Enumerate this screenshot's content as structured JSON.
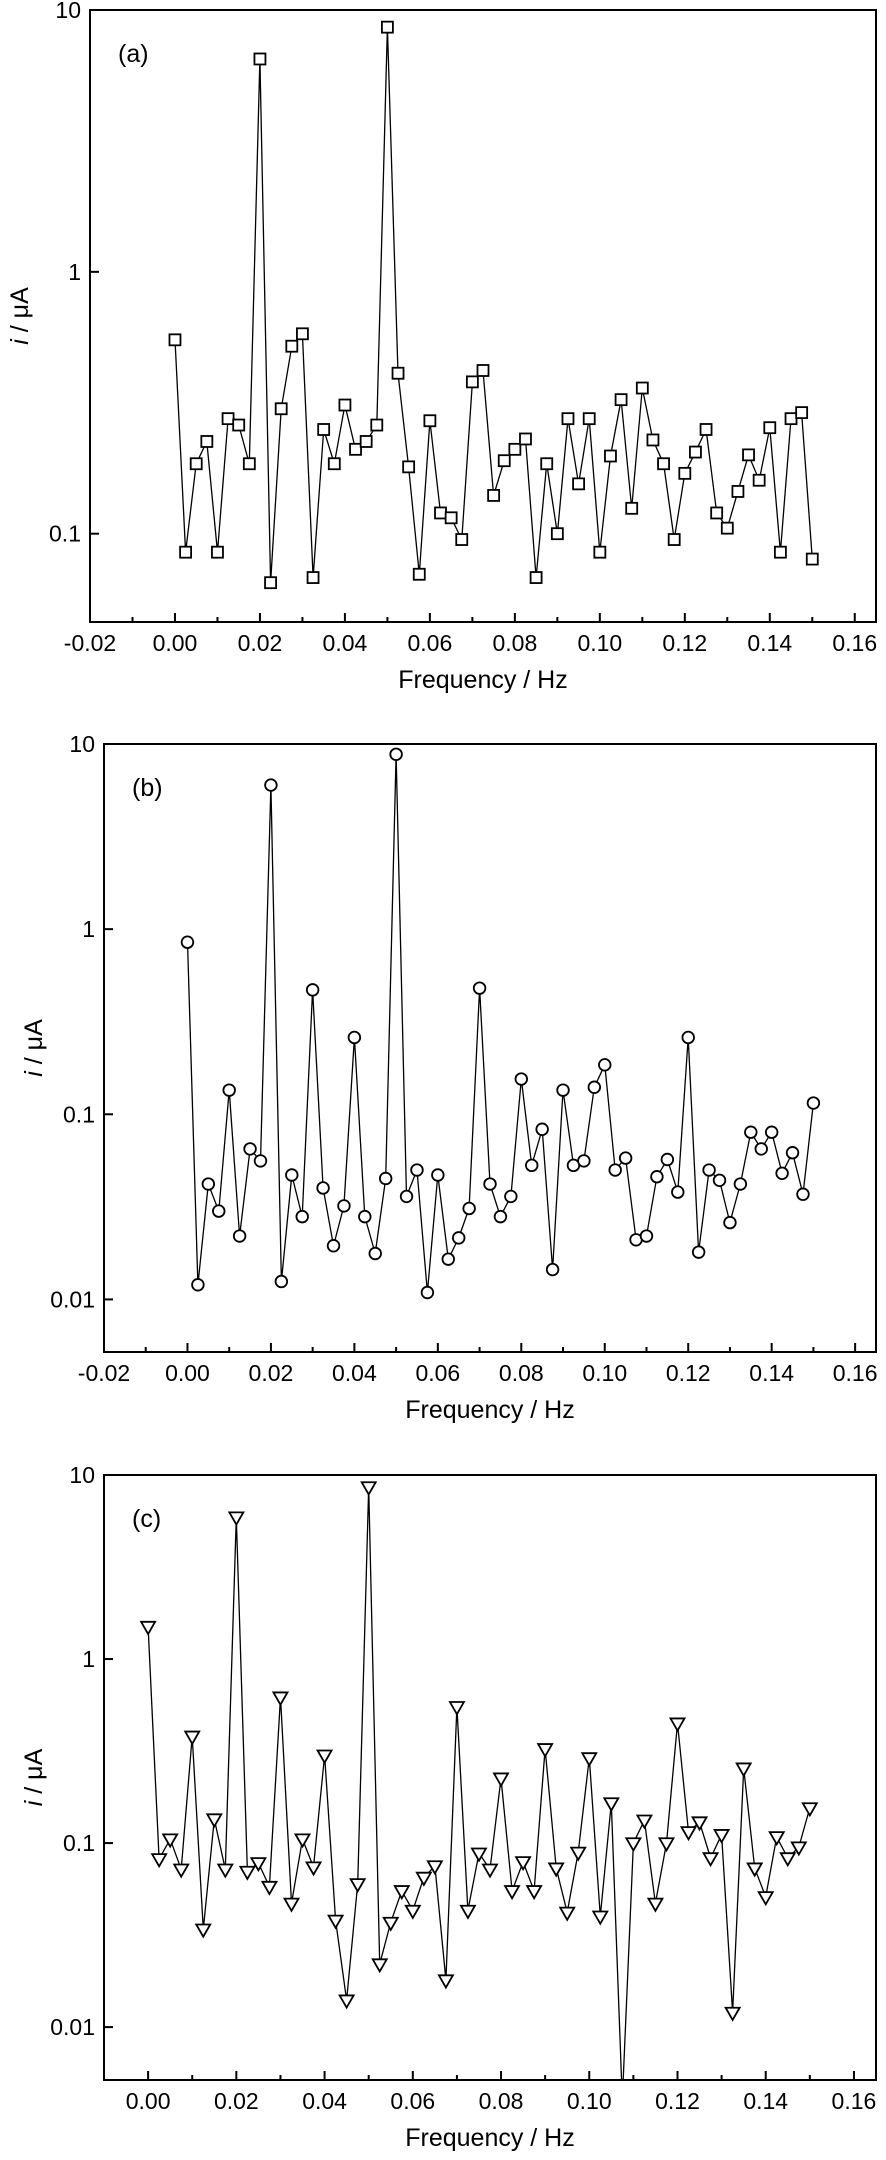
{
  "figure": {
    "background": "#ffffff",
    "axis_color": "#000000",
    "line_color": "#000000",
    "marker_fill": "#ffffff",
    "x_axis_title": "Frequency / Hz",
    "y_axis_title_italic": "i",
    "y_axis_title_rest": " / μA"
  },
  "chart_data": [
    {
      "type": "line",
      "panel_tag": "(a)",
      "marker": "square",
      "xlabel": "Frequency / Hz",
      "ylabel": "i / μA",
      "xlim": [
        -0.02,
        0.165
      ],
      "ylim": [
        0.046,
        10
      ],
      "x_major_ticks": [
        -0.02,
        0.0,
        0.02,
        0.04,
        0.06,
        0.08,
        0.1,
        0.12,
        0.14,
        0.16
      ],
      "x_minor_step": 0.01,
      "y_ticks": [
        10,
        1,
        0.1
      ],
      "grid": false,
      "legend": "none",
      "x": [
        0,
        0.0025,
        0.005,
        0.0075,
        0.01,
        0.0125,
        0.015,
        0.0175,
        0.02,
        0.0225,
        0.025,
        0.0275,
        0.03,
        0.0325,
        0.035,
        0.0375,
        0.04,
        0.0425,
        0.045,
        0.0475,
        0.05,
        0.0525,
        0.055,
        0.0575,
        0.06,
        0.0625,
        0.065,
        0.0675,
        0.07,
        0.0725,
        0.075,
        0.0775,
        0.08,
        0.0825,
        0.085,
        0.0875,
        0.09,
        0.0925,
        0.095,
        0.0975,
        0.1,
        0.1025,
        0.105,
        0.1075,
        0.11,
        0.1125,
        0.115,
        0.1175,
        0.12,
        0.1225,
        0.125,
        0.1275,
        0.13,
        0.1325,
        0.135,
        0.1375,
        0.14,
        0.1425,
        0.145,
        0.1475,
        0.15
      ],
      "y": [
        0.55,
        0.085,
        0.185,
        0.225,
        0.085,
        0.275,
        0.26,
        0.185,
        6.5,
        0.065,
        0.3,
        0.52,
        0.58,
        0.068,
        0.25,
        0.185,
        0.31,
        0.21,
        0.225,
        0.26,
        8.6,
        0.41,
        0.18,
        0.07,
        0.27,
        0.12,
        0.115,
        0.095,
        0.38,
        0.42,
        0.14,
        0.19,
        0.21,
        0.23,
        0.068,
        0.185,
        0.1,
        0.275,
        0.155,
        0.275,
        0.085,
        0.198,
        0.325,
        0.125,
        0.36,
        0.228,
        0.185,
        0.095,
        0.17,
        0.205,
        0.25,
        0.12,
        0.105,
        0.145,
        0.2,
        0.16,
        0.254,
        0.085,
        0.275,
        0.29,
        0.08
      ]
    },
    {
      "type": "line",
      "panel_tag": "(b)",
      "marker": "circle",
      "xlabel": "Frequency / Hz",
      "ylabel": "i / μA",
      "xlim": [
        -0.02,
        0.165
      ],
      "ylim": [
        0.0052,
        10
      ],
      "x_major_ticks": [
        -0.02,
        0.0,
        0.02,
        0.04,
        0.06,
        0.08,
        0.1,
        0.12,
        0.14,
        0.16
      ],
      "x_minor_step": 0.01,
      "y_ticks": [
        10,
        1,
        0.1,
        0.01
      ],
      "grid": false,
      "legend": "none",
      "x": [
        0,
        0.0025,
        0.005,
        0.0075,
        0.01,
        0.0125,
        0.015,
        0.0175,
        0.02,
        0.0225,
        0.025,
        0.0275,
        0.03,
        0.0325,
        0.035,
        0.0375,
        0.04,
        0.0425,
        0.045,
        0.0475,
        0.05,
        0.0525,
        0.055,
        0.0575,
        0.06,
        0.0625,
        0.065,
        0.0675,
        0.07,
        0.0725,
        0.075,
        0.0775,
        0.08,
        0.0825,
        0.085,
        0.0875,
        0.09,
        0.0925,
        0.095,
        0.0975,
        0.1,
        0.1025,
        0.105,
        0.1075,
        0.11,
        0.1125,
        0.115,
        0.1175,
        0.12,
        0.1225,
        0.125,
        0.1275,
        0.13,
        0.1325,
        0.135,
        0.1375,
        0.14,
        0.1425,
        0.145,
        0.1475,
        0.15
      ],
      "y": [
        0.85,
        0.012,
        0.042,
        0.03,
        0.135,
        0.022,
        0.065,
        0.056,
        6.0,
        0.0125,
        0.047,
        0.028,
        0.47,
        0.04,
        0.0195,
        0.032,
        0.26,
        0.028,
        0.0177,
        0.045,
        8.8,
        0.036,
        0.05,
        0.0109,
        0.047,
        0.0165,
        0.0215,
        0.031,
        0.48,
        0.042,
        0.028,
        0.036,
        0.155,
        0.053,
        0.083,
        0.0145,
        0.135,
        0.053,
        0.056,
        0.14,
        0.185,
        0.05,
        0.058,
        0.021,
        0.022,
        0.046,
        0.057,
        0.038,
        0.26,
        0.018,
        0.05,
        0.044,
        0.026,
        0.042,
        0.08,
        0.065,
        0.08,
        0.048,
        0.062,
        0.037,
        0.115
      ]
    },
    {
      "type": "line",
      "panel_tag": "(c)",
      "marker": "triangle-down",
      "xlabel": "Frequency / Hz",
      "ylabel": "i / μA",
      "xlim": [
        -0.01,
        0.165
      ],
      "ylim": [
        0.00516,
        10
      ],
      "x_major_ticks": [
        0.0,
        0.02,
        0.04,
        0.06,
        0.08,
        0.1,
        0.12,
        0.14,
        0.16
      ],
      "x_minor_step": 0.01,
      "y_ticks": [
        10,
        1,
        0.1,
        0.01
      ],
      "grid": false,
      "legend": "none",
      "x": [
        0,
        0.0025,
        0.005,
        0.0075,
        0.01,
        0.0125,
        0.015,
        0.0175,
        0.02,
        0.0225,
        0.025,
        0.0275,
        0.03,
        0.0325,
        0.035,
        0.0375,
        0.04,
        0.0425,
        0.045,
        0.0475,
        0.05,
        0.0525,
        0.055,
        0.0575,
        0.06,
        0.0625,
        0.065,
        0.0675,
        0.07,
        0.0725,
        0.075,
        0.0775,
        0.08,
        0.0825,
        0.085,
        0.0875,
        0.09,
        0.0925,
        0.095,
        0.0975,
        0.1,
        0.1025,
        0.105,
        0.1075,
        0.11,
        0.1125,
        0.115,
        0.1175,
        0.12,
        0.1225,
        0.125,
        0.1275,
        0.13,
        0.1325,
        0.135,
        0.1375,
        0.14,
        0.1425,
        0.145,
        0.1475,
        0.15
      ],
      "y": [
        1.5,
        0.082,
        0.105,
        0.072,
        0.38,
        0.034,
        0.135,
        0.072,
        5.9,
        0.07,
        0.078,
        0.058,
        0.62,
        0.047,
        0.105,
        0.074,
        0.3,
        0.038,
        0.014,
        0.06,
        8.6,
        0.022,
        0.037,
        0.055,
        0.043,
        0.065,
        0.075,
        0.018,
        0.55,
        0.043,
        0.088,
        0.072,
        0.225,
        0.055,
        0.079,
        0.055,
        0.325,
        0.073,
        0.042,
        0.089,
        0.29,
        0.04,
        0.165,
        0.004,
        0.1,
        0.133,
        0.047,
        0.1,
        0.448,
        0.115,
        0.13,
        0.083,
        0.111,
        0.012,
        0.255,
        0.073,
        0.051,
        0.108,
        0.083,
        0.095,
        0.155
      ]
    }
  ]
}
